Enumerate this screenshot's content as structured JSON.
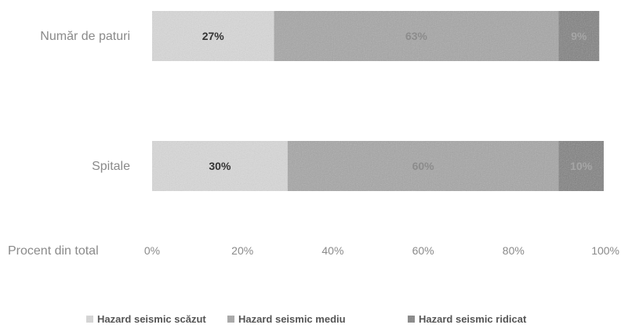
{
  "chart_data": {
    "type": "bar",
    "orientation": "horizontal",
    "stacked": true,
    "percent_stacked": true,
    "categories": [
      "Număr de paturi",
      "Spitale"
    ],
    "series": [
      {
        "name": "Hazard seismic scăzut",
        "values": [
          27,
          30
        ],
        "labels": [
          "27%",
          "30%"
        ],
        "color": "#d9d9d9",
        "label_color": "#333333"
      },
      {
        "name": "Hazard seismic mediu",
        "values": [
          63,
          60
        ],
        "labels": [
          "63%",
          "60%"
        ],
        "color": "#a6a6a6",
        "label_color": "#8c8c8c"
      },
      {
        "name": "Hazard seismic ridicat",
        "values": [
          9,
          10
        ],
        "labels": [
          "9%",
          "10%"
        ],
        "color": "#808080",
        "label_color": "#a6a6a6"
      }
    ],
    "xlabel": "Procent din total",
    "xlim": [
      0,
      100
    ],
    "xticks": [
      "0%",
      "20%",
      "40%",
      "60%",
      "80%",
      "100%"
    ],
    "grid": false,
    "legend_position": "bottom"
  }
}
